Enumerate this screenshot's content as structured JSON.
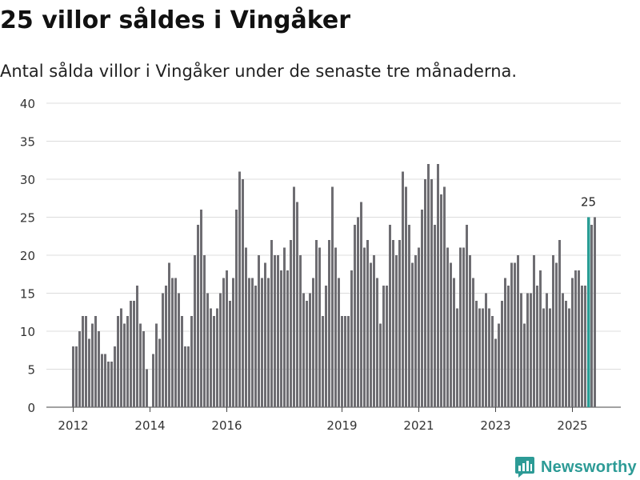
{
  "header": {
    "title": "25 villor såldes i Vingåker",
    "subtitle": "Antal sålda villor i Vingåker under de senaste tre månaderna."
  },
  "brand": {
    "name": "Newsworthy",
    "color": "#2d9b96"
  },
  "chart_data": {
    "type": "bar",
    "title": "25 villor såldes i Vingåker",
    "subtitle": "Antal sålda villor i Vingåker under de senaste tre månaderna.",
    "xlabel": "",
    "ylabel": "",
    "ylim": [
      0,
      40
    ],
    "yticks": [
      0,
      5,
      10,
      15,
      20,
      25,
      30,
      35,
      40
    ],
    "grid": true,
    "x_start": "2012-01",
    "xticks": [
      {
        "label": "2012",
        "index": 0
      },
      {
        "label": "2014",
        "index": 24
      },
      {
        "label": "2016",
        "index": 48
      },
      {
        "label": "2019",
        "index": 84
      },
      {
        "label": "2021",
        "index": 108
      },
      {
        "label": "2023",
        "index": 132
      },
      {
        "label": "2025",
        "index": 156
      }
    ],
    "values": [
      8,
      8,
      10,
      12,
      12,
      9,
      11,
      12,
      10,
      7,
      7,
      6,
      6,
      8,
      12,
      13,
      11,
      12,
      14,
      14,
      16,
      11,
      10,
      5,
      0,
      7,
      11,
      9,
      15,
      16,
      19,
      17,
      17,
      15,
      12,
      8,
      8,
      12,
      20,
      24,
      26,
      20,
      15,
      13,
      12,
      13,
      15,
      17,
      18,
      14,
      17,
      26,
      31,
      30,
      21,
      17,
      17,
      16,
      20,
      17,
      19,
      17,
      22,
      20,
      20,
      18,
      21,
      18,
      22,
      29,
      27,
      20,
      15,
      14,
      15,
      17,
      22,
      21,
      12,
      16,
      22,
      29,
      21,
      17,
      12,
      12,
      12,
      18,
      24,
      25,
      27,
      21,
      22,
      19,
      20,
      17,
      11,
      16,
      16,
      24,
      22,
      20,
      22,
      31,
      29,
      24,
      19,
      20,
      21,
      26,
      30,
      32,
      30,
      24,
      32,
      28,
      29,
      21,
      19,
      17,
      13,
      21,
      21,
      24,
      20,
      17,
      14,
      13,
      13,
      15,
      13,
      12,
      9,
      11,
      14,
      17,
      16,
      19,
      19,
      20,
      15,
      11,
      15,
      15,
      20,
      16,
      18,
      13,
      15,
      13,
      20,
      19,
      22,
      15,
      14,
      13,
      17,
      18,
      18,
      16,
      16,
      25,
      24,
      25
    ],
    "highlight": {
      "index": 161,
      "value": 25,
      "label": "25",
      "color": "#2a9d95"
    },
    "bar_color": "#6e6d72"
  }
}
